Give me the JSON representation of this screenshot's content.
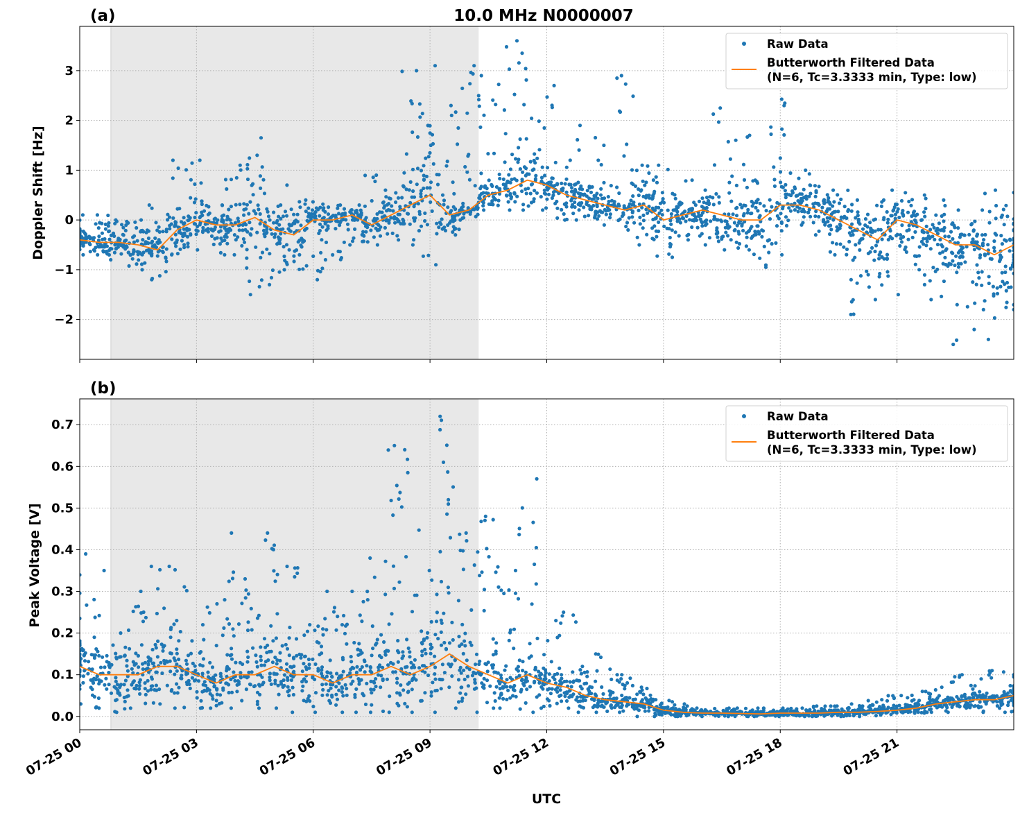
{
  "chart_data": [
    {
      "type": "scatter+line",
      "panel_label": "(a)",
      "title": "10.0 MHz N0000007",
      "xlabel": "",
      "ylabel": "Doppler Shift [Hz]",
      "ylim": [
        -2.8,
        3.89
      ],
      "yticks": [
        -2,
        -1,
        0,
        1,
        2,
        3
      ],
      "ytick_labels": [
        "−2",
        "−1",
        "0",
        "1",
        "2",
        "3"
      ],
      "xlim_hours": [
        0,
        24
      ],
      "xticks_hours": [
        0,
        3,
        6,
        9,
        12,
        15,
        18,
        21
      ],
      "shaded_span_hours": [
        0.8,
        10.25
      ],
      "grid": true,
      "legend_placement": "top-right",
      "legend": [
        "Raw Data",
        "Butterworth Filtered Data\n(N=6, Tc=3.3333 min, Type: low)"
      ],
      "x_hours": [
        0,
        0.5,
        1,
        1.5,
        2,
        2.5,
        3,
        3.5,
        4,
        4.5,
        5,
        5.5,
        6,
        6.5,
        7,
        7.5,
        8,
        8.5,
        9,
        9.5,
        10,
        10.5,
        11,
        11.5,
        12,
        12.5,
        13,
        13.5,
        14,
        14.5,
        15,
        15.5,
        16,
        16.5,
        17,
        17.5,
        18,
        18.5,
        19,
        19.5,
        20,
        20.5,
        21,
        21.5,
        22,
        22.5,
        23,
        23.5,
        24
      ],
      "series": [
        {
          "name": "Butterworth Filtered Data",
          "color": "#ff7f0e",
          "values": [
            -0.4,
            -0.45,
            -0.45,
            -0.5,
            -0.6,
            -0.2,
            0.0,
            -0.1,
            -0.1,
            0.05,
            -0.2,
            -0.3,
            0.0,
            0.0,
            0.1,
            -0.1,
            0.1,
            0.3,
            0.5,
            0.1,
            0.2,
            0.5,
            0.6,
            0.8,
            0.7,
            0.5,
            0.4,
            0.3,
            0.2,
            0.3,
            0.0,
            0.1,
            0.2,
            0.1,
            0.0,
            0.0,
            0.3,
            0.3,
            0.2,
            0.0,
            -0.2,
            -0.4,
            0.0,
            -0.1,
            -0.3,
            -0.5,
            -0.5,
            -0.7,
            -0.5
          ]
        },
        {
          "name": "Raw Data",
          "color": "#1f77b4",
          "low": [
            -0.7,
            -0.7,
            -0.8,
            -1.0,
            -1.2,
            -0.7,
            -0.6,
            -0.7,
            -0.7,
            -1.5,
            -1.3,
            -1.0,
            -1.2,
            -0.8,
            -0.5,
            -0.5,
            -0.4,
            -0.5,
            -0.9,
            -0.3,
            0.0,
            0.2,
            0.2,
            0.2,
            0.2,
            0.0,
            0.0,
            -0.1,
            -0.2,
            -0.5,
            -0.75,
            -0.4,
            -0.5,
            -0.6,
            -0.6,
            -0.95,
            -0.7,
            -0.1,
            -0.3,
            -0.7,
            -1.9,
            -1.6,
            -1.5,
            -1.3,
            -1.6,
            -2.5,
            -2.2,
            -2.4,
            -1.8
          ],
          "high": [
            0.1,
            0.1,
            0.0,
            0.0,
            0.3,
            1.2,
            1.2,
            0.3,
            1.1,
            1.65,
            0.3,
            0.7,
            0.4,
            0.3,
            0.3,
            0.9,
            0.6,
            3.0,
            3.1,
            2.3,
            3.1,
            2.9,
            3.6,
            3.35,
            2.7,
            1.2,
            1.9,
            1.5,
            2.9,
            1.1,
            1.1,
            0.8,
            0.6,
            2.25,
            1.7,
            0.8,
            3.0,
            1.0,
            0.7,
            0.6,
            0.4,
            0.4,
            0.6,
            0.5,
            0.4,
            0.2,
            0.2,
            0.6,
            0.55
          ]
        }
      ]
    },
    {
      "type": "scatter+line",
      "panel_label": "(b)",
      "xlabel": "UTC",
      "ylabel": "Peak Voltage [V]",
      "ylim": [
        -0.032,
        0.762
      ],
      "yticks": [
        0.0,
        0.1,
        0.2,
        0.3,
        0.4,
        0.5,
        0.6,
        0.7
      ],
      "ytick_labels": [
        "0.0",
        "0.1",
        "0.2",
        "0.3",
        "0.4",
        "0.5",
        "0.6",
        "0.7"
      ],
      "xlim_hours": [
        0,
        24
      ],
      "xticks_hours": [
        0,
        3,
        6,
        9,
        12,
        15,
        18,
        21
      ],
      "xtick_labels": [
        "07-25 00",
        "07-25 03",
        "07-25 06",
        "07-25 09",
        "07-25 12",
        "07-25 15",
        "07-25 18",
        "07-25 21"
      ],
      "shaded_span_hours": [
        0.8,
        10.25
      ],
      "grid": true,
      "legend_placement": "top-right",
      "legend": [
        "Raw Data",
        "Butterworth Filtered Data\n(N=6, Tc=3.3333 min, Type: low)"
      ],
      "x_hours": [
        0,
        0.5,
        1,
        1.5,
        2,
        2.5,
        3,
        3.5,
        4,
        4.5,
        5,
        5.5,
        6,
        6.5,
        7,
        7.5,
        8,
        8.5,
        9,
        9.5,
        10,
        10.5,
        11,
        11.5,
        12,
        12.5,
        13,
        13.5,
        14,
        14.5,
        15,
        15.5,
        16,
        16.5,
        17,
        17.5,
        18,
        18.5,
        19,
        19.5,
        20,
        20.5,
        21,
        21.5,
        22,
        22.5,
        23,
        23.5,
        24
      ],
      "series": [
        {
          "name": "Butterworth Filtered Data",
          "color": "#ff7f0e",
          "values": [
            0.12,
            0.1,
            0.1,
            0.1,
            0.12,
            0.12,
            0.1,
            0.08,
            0.1,
            0.1,
            0.12,
            0.1,
            0.1,
            0.08,
            0.1,
            0.1,
            0.12,
            0.1,
            0.12,
            0.15,
            0.12,
            0.1,
            0.08,
            0.1,
            0.08,
            0.07,
            0.05,
            0.04,
            0.035,
            0.03,
            0.015,
            0.01,
            0.008,
            0.008,
            0.007,
            0.006,
            0.008,
            0.008,
            0.008,
            0.01,
            0.01,
            0.012,
            0.015,
            0.02,
            0.03,
            0.035,
            0.04,
            0.04,
            0.05
          ]
        },
        {
          "name": "Raw Data",
          "color": "#1f77b4",
          "low": [
            0.03,
            0.02,
            0.01,
            0.02,
            0.03,
            0.02,
            0.02,
            0.02,
            0.02,
            0.02,
            0.02,
            0.01,
            0.01,
            0.01,
            0.01,
            0.01,
            0.01,
            0.01,
            0.01,
            0.02,
            0.01,
            0.02,
            0.02,
            0.01,
            0.02,
            0.02,
            0.01,
            0.01,
            0.01,
            0.0,
            0.0,
            0.0,
            0.0,
            0.0,
            0.0,
            0.0,
            0.0,
            0.0,
            0.0,
            0.0,
            0.0,
            0.002,
            0.005,
            0.008,
            0.01,
            0.01,
            0.01,
            0.02,
            0.01
          ],
          "high": [
            0.39,
            0.35,
            0.2,
            0.3,
            0.36,
            0.36,
            0.22,
            0.28,
            0.44,
            0.33,
            0.44,
            0.36,
            0.22,
            0.3,
            0.3,
            0.38,
            0.65,
            0.64,
            0.35,
            0.72,
            0.44,
            0.48,
            0.35,
            0.57,
            0.23,
            0.25,
            0.12,
            0.15,
            0.1,
            0.07,
            0.04,
            0.03,
            0.02,
            0.02,
            0.02,
            0.02,
            0.02,
            0.02,
            0.025,
            0.025,
            0.03,
            0.04,
            0.05,
            0.06,
            0.07,
            0.1,
            0.09,
            0.11,
            0.1
          ]
        }
      ]
    }
  ]
}
